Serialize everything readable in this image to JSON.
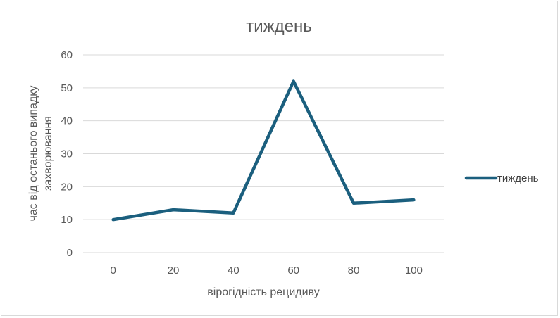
{
  "chart_data": {
    "type": "line",
    "title": "тиждень",
    "xlabel": "вірогідність рецидиву",
    "ylabel_lines": [
      "час від останього випадку",
      "захворювання"
    ],
    "categories": [
      "0",
      "20",
      "40",
      "60",
      "80",
      "100"
    ],
    "series": [
      {
        "name": "тиждень",
        "values": [
          10,
          13,
          12,
          52,
          15,
          16
        ],
        "color": "#1b5f7e"
      }
    ],
    "ylim": [
      0,
      60
    ],
    "yticks": [
      0,
      10,
      20,
      30,
      40,
      50,
      60
    ],
    "grid": true,
    "legend": "right"
  }
}
